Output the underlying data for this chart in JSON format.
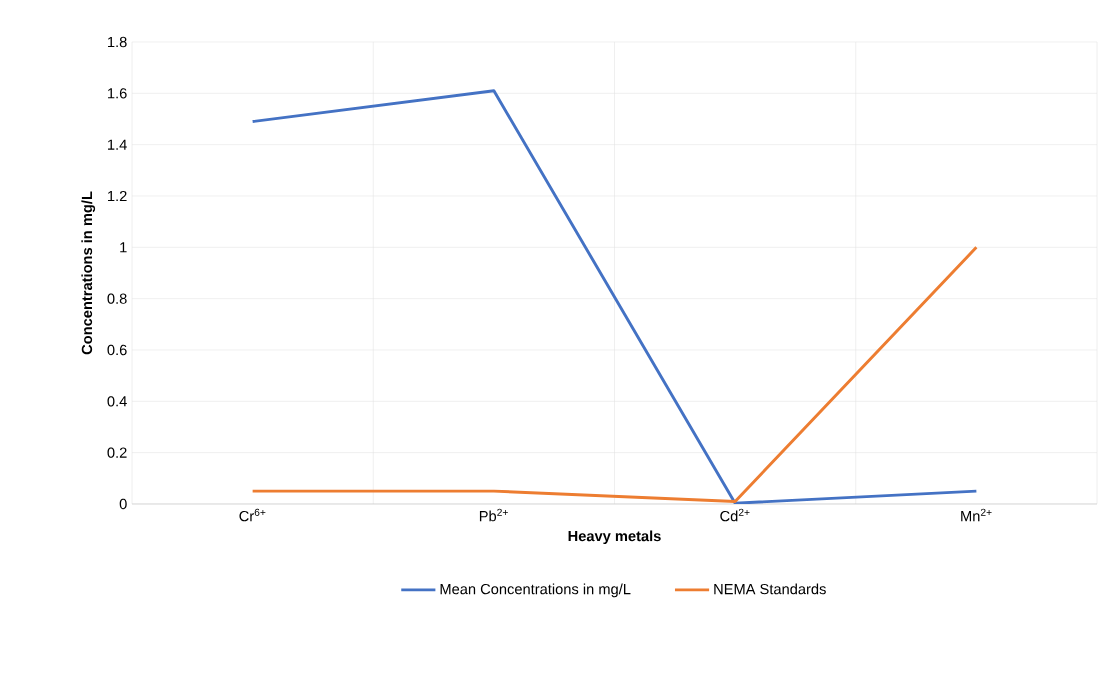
{
  "chart_data": {
    "type": "line",
    "xlabel": "Heavy metals",
    "ylabel": "Concentrations in mg/L",
    "categories": [
      "Cr$^{6+}$",
      "Pb$^{2+}$",
      "Cd$^{2+}$",
      "Mn$^{2+}$"
    ],
    "series": [
      {
        "name": "Mean Concentrations in mg/L",
        "color": "#4472c4",
        "values": [
          1.49,
          1.61,
          0.003,
          0.05
        ]
      },
      {
        "name": "NEMA Standards",
        "color": "#ed7d31",
        "values": [
          0.05,
          0.05,
          0.01,
          1
        ]
      }
    ],
    "ylim": [
      0,
      1.8
    ],
    "yticks": [
      0,
      0.2,
      0.4,
      0.6,
      0.8,
      1,
      1.2,
      1.4,
      1.6,
      1.8
    ],
    "grid": true,
    "legend": "bottom",
    "marker": "none",
    "line_style": "solid"
  }
}
